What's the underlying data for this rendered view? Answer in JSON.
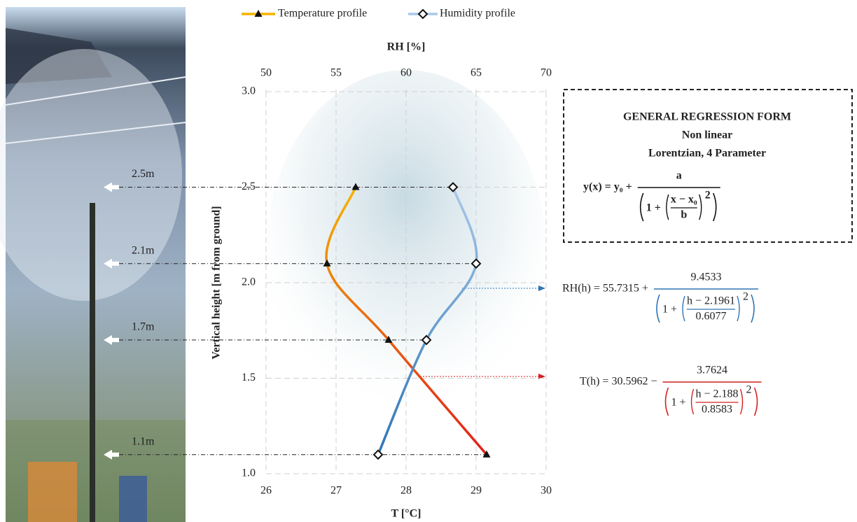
{
  "chart_data": {
    "type": "line",
    "xlabel": "T [°C]",
    "x2label": "RH [%]",
    "ylabel": "Vertical height [m from ground]",
    "heights": [
      1.1,
      1.7,
      2.1,
      2.5
    ],
    "height_labels": [
      "1.1m",
      "1.7m",
      "2.1m",
      "2.5m"
    ],
    "series": [
      {
        "name": "Temperature profile",
        "color": "#f5b400",
        "color_end": "#e0201e",
        "marker": "triangle",
        "values": [
          29.15,
          27.75,
          26.87,
          27.28
        ]
      },
      {
        "name": "Humidity profile",
        "color": "#a9c8e8",
        "color_end": "#2e75b6",
        "marker": "diamond",
        "axis": "x2",
        "values": [
          58,
          61.45,
          65,
          63.35
        ]
      }
    ],
    "xlim": [
      26,
      30
    ],
    "xticks": [
      26,
      27,
      28,
      29,
      30
    ],
    "x2lim": [
      50,
      70
    ],
    "x2ticks": [
      50,
      55,
      60,
      65,
      70
    ],
    "ylim": [
      1,
      3
    ],
    "yticks": [
      {
        "value": 1,
        "label": "1.0"
      },
      1.5,
      {
        "value": 2,
        "label": "2.0"
      },
      2.5,
      {
        "value": 3,
        "label": "3.0"
      }
    ],
    "grid": true,
    "regression_box": {
      "lines": [
        "GENERAL REGRESSION FORM",
        "Non linear",
        "Lorentzian, 4 Parameter"
      ],
      "formula": {
        "lhs": "y(x) = y₀ +",
        "numerator": "a",
        "prefix": "1 +",
        "inner_num": "x − x₀",
        "inner_den": "b",
        "exponent": "2"
      }
    },
    "equations": [
      {
        "lhs": "RH(h) = 55.7315 +",
        "numerator": "9.4533",
        "prefix": "1 +",
        "inner_num": "h − 2.1961",
        "inner_den": "0.6077",
        "exponent": "2",
        "color": "#2e75b6"
      },
      {
        "lhs": "T(h) = 30.5962 −",
        "numerator": "3.7624",
        "prefix": "1 +",
        "inner_num": "h − 2.188",
        "inner_den": "0.8583",
        "exponent": "2",
        "color": "#d42020"
      }
    ]
  }
}
